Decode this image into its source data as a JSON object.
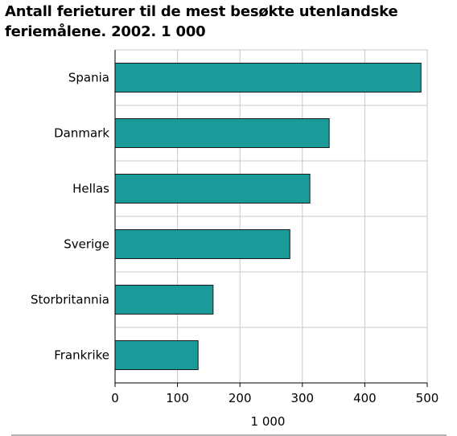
{
  "colors": {
    "bar": "#1a9a99",
    "grid": "#c8c8c8",
    "rule": "#888888"
  },
  "chart_data": {
    "type": "bar",
    "orientation": "horizontal",
    "title": "Antall ferieturer til de mest besøkte utenlandske feriemålene. 2002. 1 000",
    "xlabel": "1 000",
    "ylabel": "",
    "categories": [
      "Spania",
      "Danmark",
      "Hellas",
      "Sverige",
      "Storbritannia",
      "Frankrike"
    ],
    "values": [
      490,
      343,
      312,
      280,
      157,
      133
    ],
    "xlim": [
      0,
      500
    ],
    "xticks": [
      0,
      100,
      200,
      300,
      400,
      500
    ],
    "grid": true,
    "legend": "none"
  }
}
